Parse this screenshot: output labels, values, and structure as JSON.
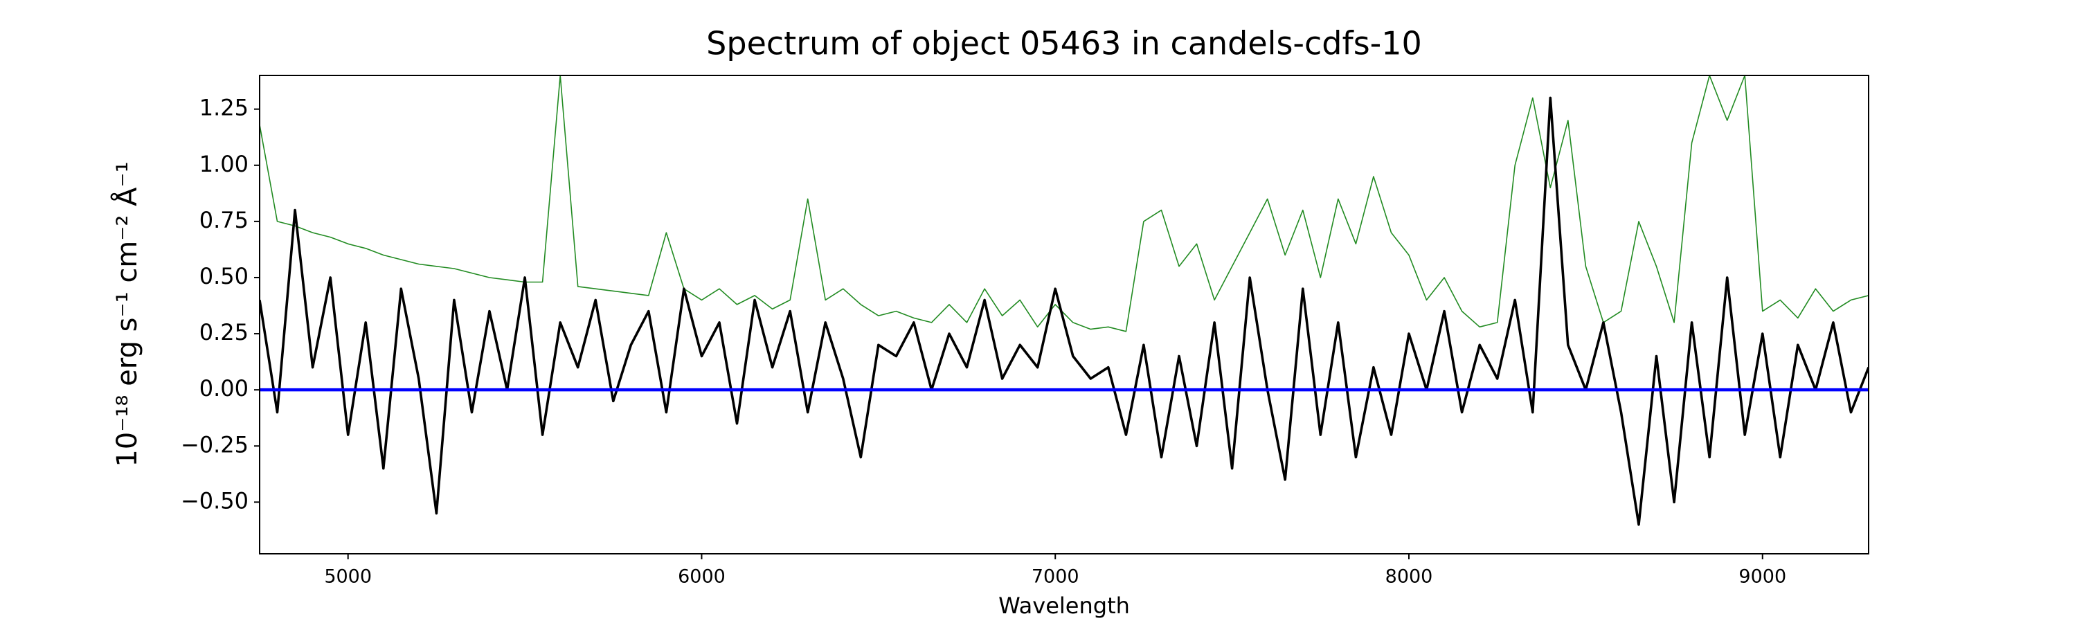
{
  "chart_data": {
    "type": "line",
    "title": "Spectrum of object 05463 in candels-cdfs-10",
    "xlabel": "Wavelength",
    "ylabel": "10⁻¹⁸ erg s⁻¹ cm⁻² Å⁻¹",
    "x": [
      4750,
      4800,
      4850,
      4900,
      4950,
      5000,
      5050,
      5100,
      5150,
      5200,
      5250,
      5300,
      5350,
      5400,
      5450,
      5500,
      5550,
      5600,
      5650,
      5700,
      5750,
      5800,
      5850,
      5900,
      5950,
      6000,
      6050,
      6100,
      6150,
      6200,
      6250,
      6300,
      6350,
      6400,
      6450,
      6500,
      6550,
      6600,
      6650,
      6700,
      6750,
      6800,
      6850,
      6900,
      6950,
      7000,
      7050,
      7100,
      7150,
      7200,
      7250,
      7300,
      7350,
      7400,
      7450,
      7500,
      7550,
      7600,
      7650,
      7700,
      7750,
      7800,
      7850,
      7900,
      7950,
      8000,
      8050,
      8100,
      8150,
      8200,
      8250,
      8300,
      8350,
      8400,
      8450,
      8500,
      8550,
      8600,
      8650,
      8700,
      8750,
      8800,
      8850,
      8900,
      8950,
      9000,
      9050,
      9100,
      9150,
      9200,
      9250,
      9300
    ],
    "series": [
      {
        "color": "#228b22",
        "values": [
          1.18,
          0.75,
          0.73,
          0.7,
          0.68,
          0.65,
          0.63,
          0.6,
          0.58,
          0.56,
          0.55,
          0.54,
          0.52,
          0.5,
          0.49,
          0.48,
          0.48,
          1.4,
          0.46,
          0.45,
          0.44,
          0.43,
          0.42,
          0.7,
          0.45,
          0.4,
          0.45,
          0.38,
          0.42,
          0.36,
          0.4,
          0.85,
          0.4,
          0.45,
          0.38,
          0.33,
          0.35,
          0.32,
          0.3,
          0.38,
          0.3,
          0.45,
          0.33,
          0.4,
          0.28,
          0.38,
          0.3,
          0.27,
          0.28,
          0.26,
          0.75,
          0.8,
          0.55,
          0.65,
          0.4,
          0.55,
          0.7,
          0.85,
          0.6,
          0.8,
          0.5,
          0.85,
          0.65,
          0.95,
          0.7,
          0.6,
          0.4,
          0.5,
          0.35,
          0.28,
          0.3,
          1.0,
          1.3,
          0.9,
          1.2,
          0.55,
          0.3,
          0.35,
          0.75,
          0.55,
          0.3,
          1.1,
          1.4,
          1.2,
          1.4,
          0.35,
          0.4,
          0.32,
          0.45,
          0.35,
          0.4,
          0.42
        ]
      },
      {
        "color": "#000000",
        "values": [
          0.4,
          -0.1,
          0.8,
          0.1,
          0.5,
          -0.2,
          0.3,
          -0.35,
          0.45,
          0.05,
          -0.55,
          0.4,
          -0.1,
          0.35,
          0.0,
          0.5,
          -0.2,
          0.3,
          0.1,
          0.4,
          -0.05,
          0.2,
          0.35,
          -0.1,
          0.45,
          0.15,
          0.3,
          -0.15,
          0.4,
          0.1,
          0.35,
          -0.1,
          0.3,
          0.05,
          -0.3,
          0.2,
          0.15,
          0.3,
          0.0,
          0.25,
          0.1,
          0.4,
          0.05,
          0.2,
          0.1,
          0.45,
          0.15,
          0.05,
          0.1,
          -0.2,
          0.2,
          -0.3,
          0.15,
          -0.25,
          0.3,
          -0.35,
          0.5,
          0.0,
          -0.4,
          0.45,
          -0.2,
          0.3,
          -0.3,
          0.1,
          -0.2,
          0.25,
          0.0,
          0.35,
          -0.1,
          0.2,
          0.05,
          0.4,
          -0.1,
          1.3,
          0.2,
          0.0,
          0.3,
          -0.1,
          -0.6,
          0.15,
          -0.5,
          0.3,
          -0.3,
          0.5,
          -0.2,
          0.25,
          -0.3,
          0.2,
          0.0,
          0.3,
          -0.1,
          0.1
        ]
      }
    ],
    "hlines": [
      {
        "value": 0,
        "color": "#0000ff"
      }
    ],
    "xlim": [
      4750,
      9300
    ],
    "ylim": [
      -0.73,
      1.4
    ],
    "xticks": [
      5000,
      6000,
      7000,
      8000,
      9000
    ],
    "yticks": [
      {
        "value": -0.5,
        "label": "−0.50"
      },
      {
        "value": -0.25,
        "label": "−0.25"
      },
      {
        "value": 0,
        "label": "0.00"
      },
      {
        "value": 0.25,
        "label": "0.25"
      },
      {
        "value": 0.5,
        "label": "0.50"
      },
      {
        "value": 0.75,
        "label": "0.75"
      },
      {
        "value": 1.0,
        "label": "1.00"
      },
      {
        "value": 1.25,
        "label": "1.25"
      }
    ],
    "grid": false
  }
}
